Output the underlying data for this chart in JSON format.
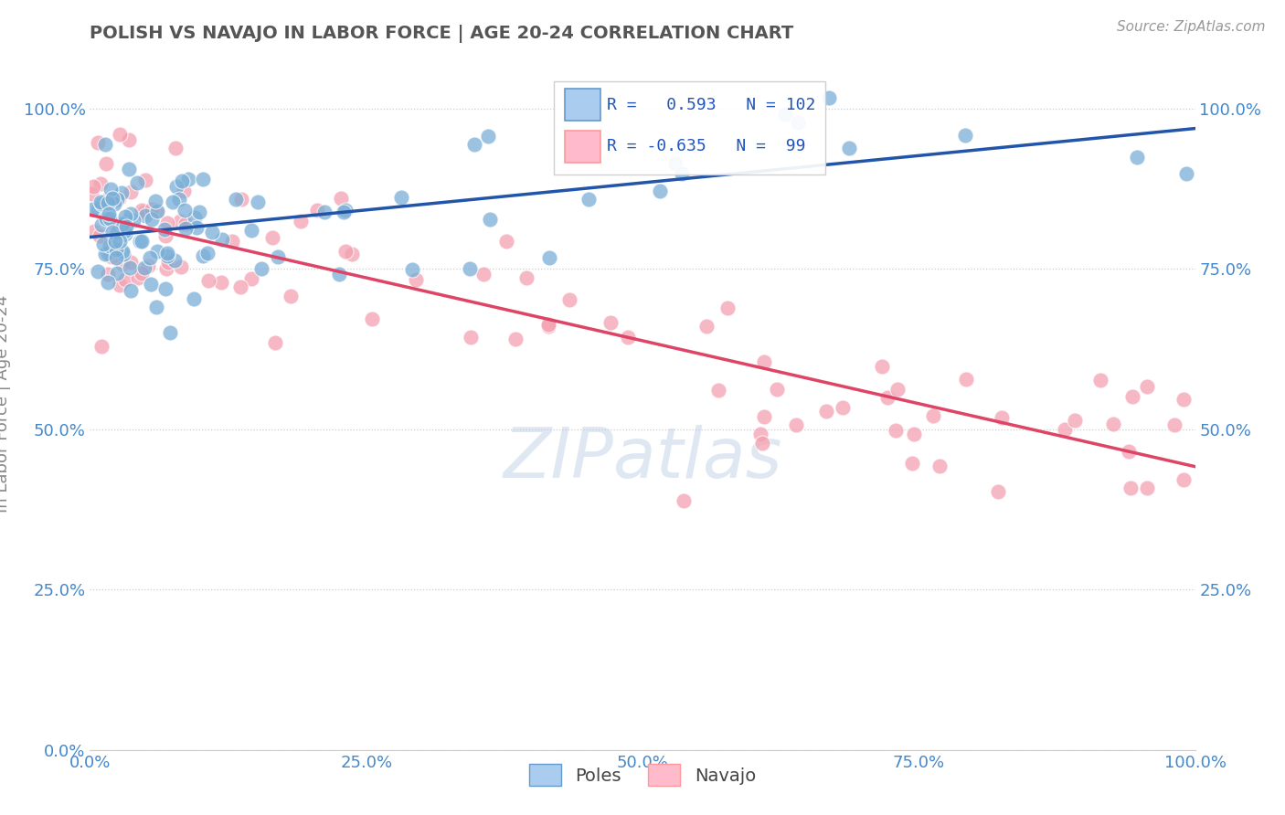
{
  "title": "POLISH VS NAVAJO IN LABOR FORCE | AGE 20-24 CORRELATION CHART",
  "source": "Source: ZipAtlas.com",
  "ylabel": "In Labor Force | Age 20-24",
  "poles_color": "#7aaed6",
  "navajo_color": "#f4a0b0",
  "poles_line_color": "#2255aa",
  "navajo_line_color": "#dd4466",
  "poles_R": 0.593,
  "poles_N": 102,
  "navajo_R": -0.635,
  "navajo_N": 99,
  "watermark": "ZIPatlas",
  "background_color": "#ffffff",
  "grid_color": "#cccccc",
  "title_color": "#555555",
  "axis_label_color": "#888888",
  "tick_color": "#4488CC",
  "legend_box_color": "#dddddd",
  "legend_text_color": "#2255bb"
}
